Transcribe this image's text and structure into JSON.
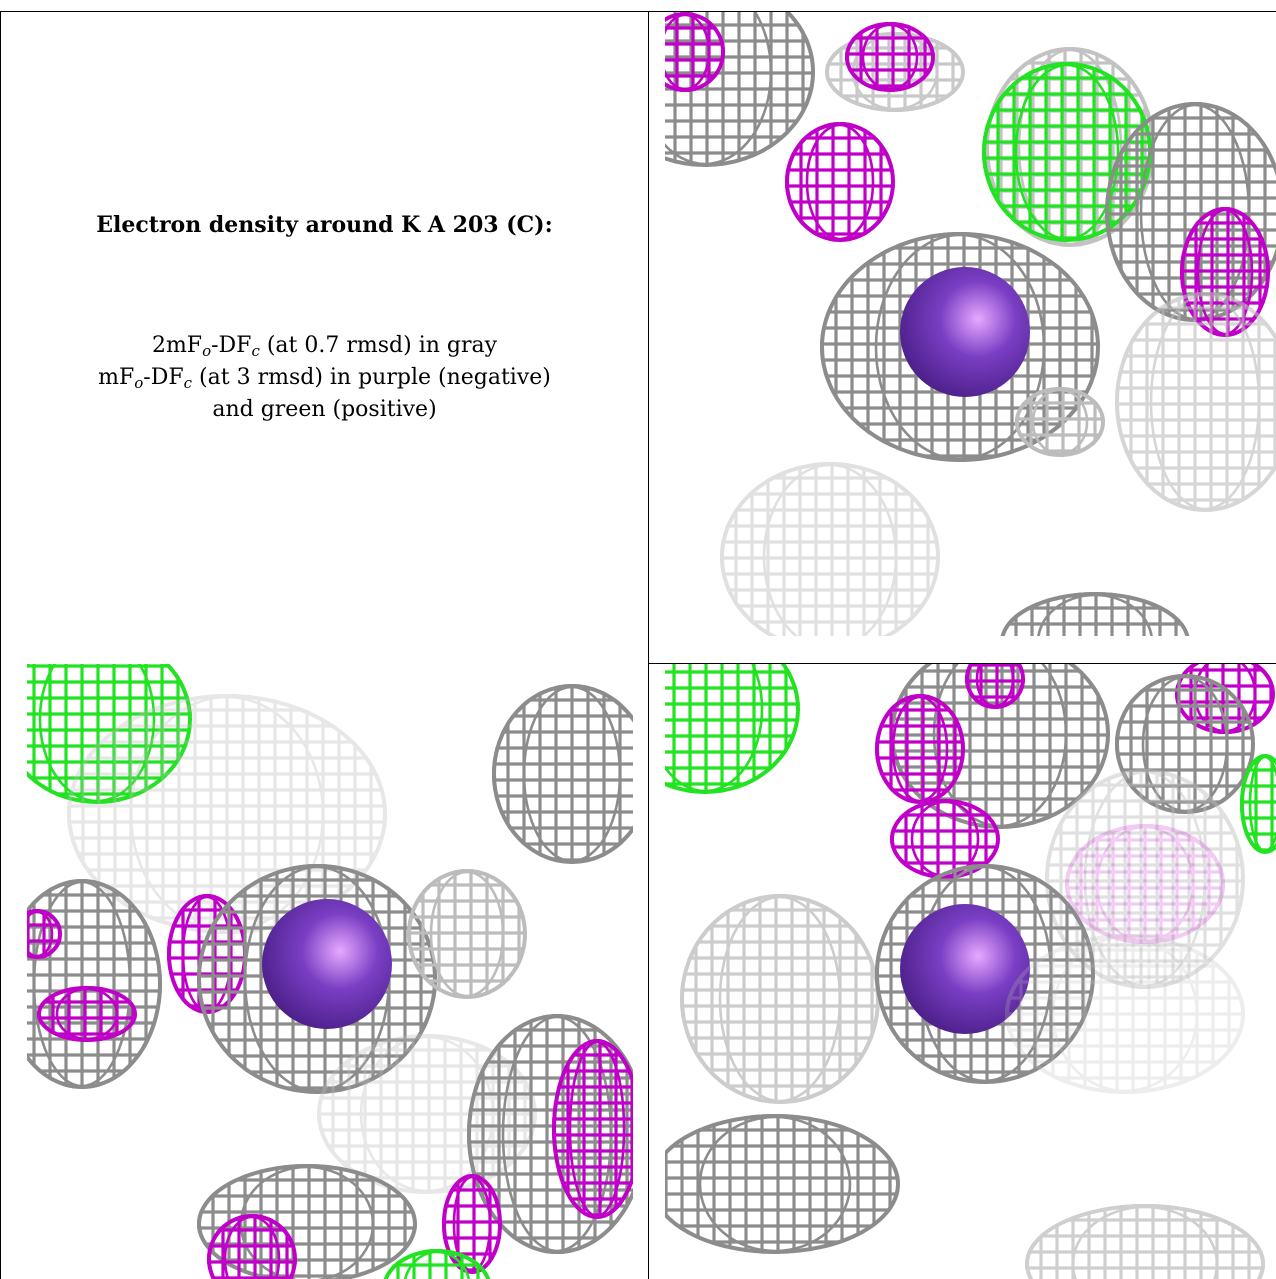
{
  "caption": {
    "title": "Electron density around K A 203 (C):",
    "line1": {
      "a": "2mF",
      "sub1": "o",
      "b": "-DF",
      "sub2": "c",
      "c": " (at 0.7 rmsd) in gray"
    },
    "line2": {
      "a": "mF",
      "sub1": "o",
      "b": "-DF",
      "sub2": "c",
      "c": " (at 3 rmsd) in purple (negative)"
    },
    "line3": "and green (positive)"
  },
  "colors": {
    "map_2fofc": "#8c8c8c",
    "map_fofc_negative": "#c000c8",
    "map_fofc_positive": "#22e222",
    "potassium_ion": "#7a3ec4"
  },
  "panels": [
    {
      "id": "view-1",
      "icon": "electron-density-mesh"
    },
    {
      "id": "view-2",
      "icon": "electron-density-mesh"
    },
    {
      "id": "view-3",
      "icon": "electron-density-mesh"
    }
  ]
}
